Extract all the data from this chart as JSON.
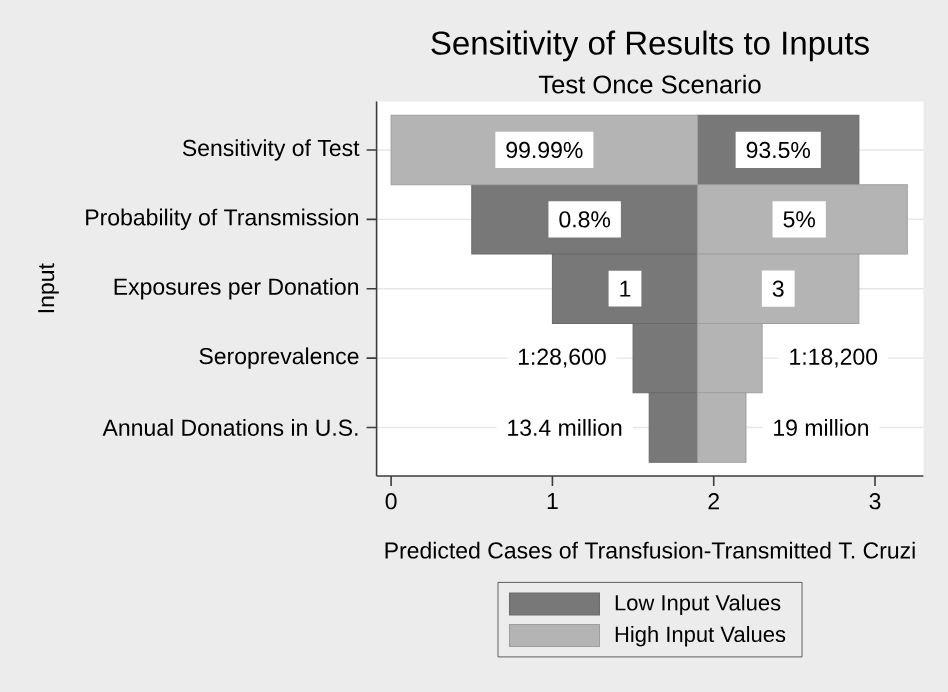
{
  "chart_data": {
    "type": "bar",
    "orientation": "horizontal",
    "title": "Sensitivity of Results to Inputs",
    "subtitle": "Test Once Scenario",
    "xlabel": "Predicted Cases of Transfusion-Transmitted T. Cruzi",
    "ylabel": "Input",
    "categories": [
      "Sensitivity of Test",
      "Probability of Transmission",
      "Exposures per Donation",
      "Seroprevalence",
      "Annual Donations in U.S."
    ],
    "series": [
      {
        "name": "Low Input Values",
        "color": "#787878",
        "base": [
          1.9,
          1.9,
          1.9,
          1.9,
          1.9
        ],
        "values": [
          1.0,
          -1.4,
          -0.9,
          -0.4,
          -0.3
        ]
      },
      {
        "name": "High Input Values",
        "color": "#b4b4b4",
        "base": [
          1.9,
          1.9,
          1.9,
          1.9,
          1.9
        ],
        "values": [
          -1.9,
          1.3,
          1.0,
          0.4,
          0.3
        ]
      }
    ],
    "annotations": [
      {
        "text": "99.99%",
        "x": 0.95,
        "y": "Sensitivity of Test"
      },
      {
        "text": "93.5%",
        "x": 2.4,
        "y": "Sensitivity of Test"
      },
      {
        "text": "0.8%",
        "x": 1.2,
        "y": "Probability of Transmission"
      },
      {
        "text": "5%",
        "x": 2.53,
        "y": "Probability of Transmission"
      },
      {
        "text": "1",
        "x": 1.45,
        "y": "Exposures per Donation"
      },
      {
        "text": "3",
        "x": 2.4,
        "y": "Exposures per Donation"
      },
      {
        "text": "1:28,600",
        "x": 1.5,
        "y": "Seroprevalence"
      },
      {
        "text": "1:18,200",
        "x": 2.3,
        "y": "Seroprevalence"
      },
      {
        "text": "13.4 million",
        "x": 1.6,
        "y": "Annual Donations in U.S."
      },
      {
        "text": "19 million",
        "x": 2.2,
        "y": "Annual Donations in U.S."
      }
    ],
    "xlim": [
      -0.09,
      3.3
    ],
    "xticks": [
      0,
      1,
      2,
      3
    ],
    "grid": "y",
    "legend": "bottom"
  }
}
